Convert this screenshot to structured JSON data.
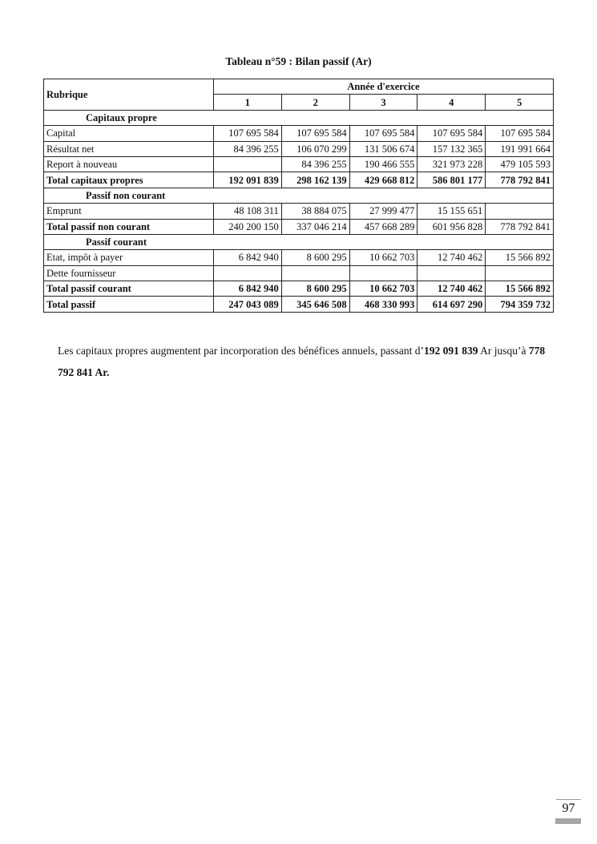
{
  "title": "Tableau n°59 : Bilan passif (Ar)",
  "header": {
    "rubrique": "Rubrique",
    "annee": "Année d'exercice",
    "years": [
      "1",
      "2",
      "3",
      "4",
      "5"
    ]
  },
  "rows": [
    {
      "type": "section",
      "label": "Capitaux propre"
    },
    {
      "type": "row",
      "label": "Capital",
      "values": [
        "107 695 584",
        "107 695 584",
        "107 695 584",
        "107 695 584",
        "107 695 584"
      ]
    },
    {
      "type": "row",
      "label": "Résultat net",
      "values": [
        "84 396 255",
        "106 070 299",
        "131 506 674",
        "157 132 365",
        "191 991 664"
      ]
    },
    {
      "type": "row",
      "label": "Report à nouveau",
      "values": [
        "",
        "84 396 255",
        "190 466 555",
        "321 973 228",
        "479 105 593"
      ]
    },
    {
      "type": "total",
      "label": "Total capitaux propres",
      "values": [
        "192 091 839",
        "298 162 139",
        "429 668 812",
        "586 801 177",
        "778 792 841"
      ]
    },
    {
      "type": "section",
      "label": "Passif non courant"
    },
    {
      "type": "row",
      "label": "Emprunt",
      "values": [
        "48 108 311",
        "38 884 075",
        "27 999 477",
        "15 155 651",
        ""
      ]
    },
    {
      "type": "totalplain",
      "label": "Total passif non courant",
      "values": [
        "240 200 150",
        "337 046 214",
        "457 668 289",
        "601 956 828",
        "778 792 841"
      ]
    },
    {
      "type": "section",
      "label": "Passif courant"
    },
    {
      "type": "row",
      "label": "Etat, impôt à payer",
      "values": [
        "6 842 940",
        "8 600 295",
        "10 662 703",
        "12 740 462",
        "15 566 892"
      ]
    },
    {
      "type": "row",
      "label": "Dette fournisseur",
      "values": [
        "",
        "",
        "",
        "",
        ""
      ]
    },
    {
      "type": "total",
      "label": "Total passif courant",
      "values": [
        "6 842 940",
        "8 600 295",
        "10 662 703",
        "12 740 462",
        "15 566 892"
      ]
    },
    {
      "type": "total",
      "label": "Total passif",
      "values": [
        "247 043 089",
        "345 646 508",
        "468 330 993",
        "614 697 290",
        "794 359 732"
      ]
    }
  ],
  "paragraph": {
    "text1": "Les capitaux propres augmentent par incorporation des bénéfices annuels, passant d’",
    "value1": "192 091 839",
    "text2": " Ar jusqu’à ",
    "value2": "778 792 841 Ar."
  },
  "page_number": "97"
}
